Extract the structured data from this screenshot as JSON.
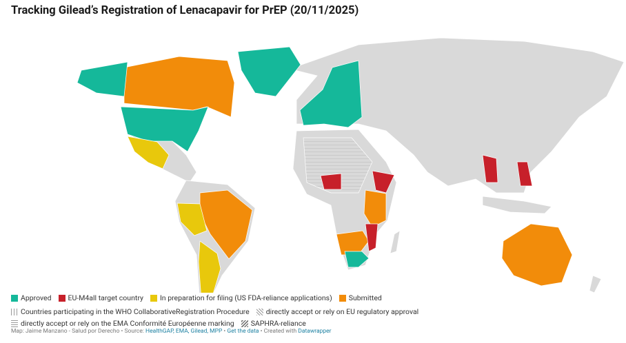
{
  "header": {
    "title": "Tracking Gilead’s Registration of Lenacapavir for PrEP (20/11/2025)"
  },
  "legend": {
    "colors": [
      {
        "label": "Approved",
        "color": "#15b89a"
      },
      {
        "label": "EU-M4all target country",
        "color": "#c7202a"
      },
      {
        "label": "In preparation for filing (US FDA-reliance applications)",
        "color": "#e8c80c"
      },
      {
        "label": "Submitted",
        "color": "#f28c0a"
      }
    ],
    "patterns": [
      {
        "label": "Countries participating in the WHO CollaborativeRegistration Procedure",
        "pattern": "vertical"
      },
      {
        "label": "directly accept or rely on EU regulatory approval",
        "pattern": "diagonal"
      },
      {
        "label": "directly accept or rely on the EMA Conformité Européenne marking",
        "pattern": "horizontal"
      },
      {
        "label": "SAPHRA-reliance",
        "pattern": "dense-diagonal"
      }
    ]
  },
  "footer": {
    "parts": [
      {
        "text": "Map: Jaime Manzano - Salud por Derecho • Source: ",
        "link": false
      },
      {
        "text": "HealthGAP, EMA, Gilead, MPP",
        "link": true
      },
      {
        "text": " • ",
        "link": false
      },
      {
        "text": "Get the data",
        "link": true
      },
      {
        "text": " • Created with ",
        "link": false
      },
      {
        "text": "Datawrapper",
        "link": true
      }
    ]
  }
}
